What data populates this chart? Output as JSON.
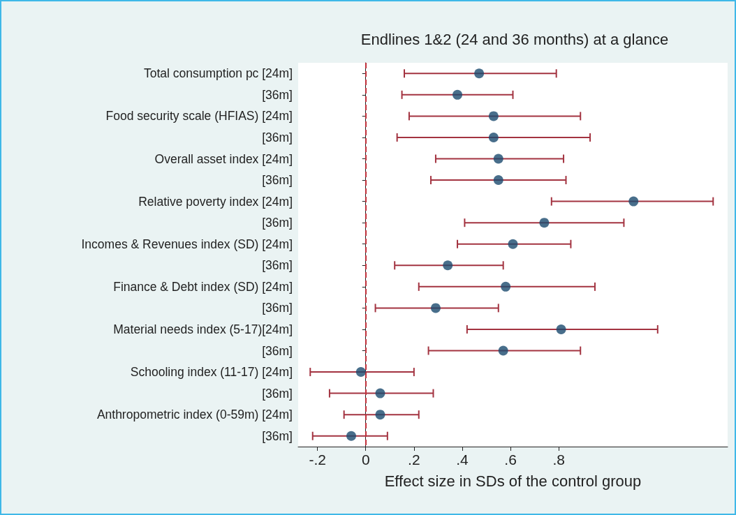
{
  "chart_data": {
    "type": "scatter",
    "orientation": "horizontal",
    "title": "Endlines 1&2 (24 and 36 months) at a glance",
    "xlabel": "Effect size in SDs of the control group",
    "categories": [
      "Total consumption pc [24m]",
      "[36m]",
      "Food security scale (HFIAS) [24m]",
      "[36m]",
      "Overall asset index [24m]",
      "[36m]",
      "Relative poverty index [24m]",
      "[36m]",
      "Incomes & Revenues index (SD) [24m]",
      "[36m]",
      "Finance & Debt index (SD) [24m]",
      "[36m]",
      "Material needs index (5-17)[24m]",
      "[36m]",
      "Schooling index (11-17) [24m]",
      "[36m]",
      "Anthropometric index (0-59m) [24m]",
      "[36m]"
    ],
    "values": [
      0.47,
      0.38,
      0.53,
      0.53,
      0.55,
      0.55,
      1.11,
      0.74,
      0.61,
      0.34,
      0.58,
      0.29,
      0.81,
      0.57,
      -0.02,
      0.06,
      0.06,
      -0.06
    ],
    "errors": [
      [
        0.16,
        0.79
      ],
      [
        0.15,
        0.61
      ],
      [
        0.18,
        0.89
      ],
      [
        0.13,
        0.93
      ],
      [
        0.29,
        0.82
      ],
      [
        0.27,
        0.83
      ],
      [
        0.77,
        1.44
      ],
      [
        0.41,
        1.07
      ],
      [
        0.38,
        0.85
      ],
      [
        0.12,
        0.57
      ],
      [
        0.22,
        0.95
      ],
      [
        0.04,
        0.55
      ],
      [
        0.42,
        1.21
      ],
      [
        0.26,
        0.89
      ],
      [
        -0.23,
        0.2
      ],
      [
        -0.15,
        0.28
      ],
      [
        -0.09,
        0.22
      ],
      [
        -0.22,
        0.09
      ]
    ],
    "color": "#1a4a6e",
    "marker": "circle",
    "xlim": [
      -0.28,
      1.5
    ],
    "xticks": [
      {
        "value": -0.2,
        "label": "-.2"
      },
      0,
      {
        "value": 0.2,
        "label": ".2"
      },
      {
        "value": 0.4,
        "label": ".4"
      },
      {
        "value": 0.6,
        "label": ".6"
      },
      {
        "value": 0.8,
        "label": ".8"
      }
    ],
    "ref_lines": [
      {
        "axis": "x",
        "value": 0,
        "color": "#c0303a",
        "line_style": "dashed"
      }
    ],
    "grid": false
  }
}
